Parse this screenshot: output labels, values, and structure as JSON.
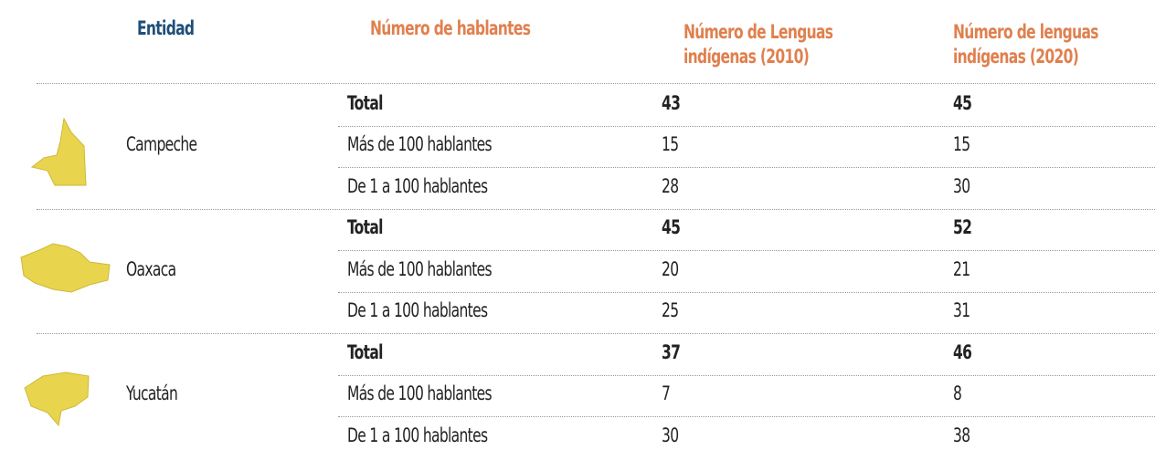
{
  "table": {
    "headers": [
      "Entidad",
      "Número de hablantes",
      "Número de Lenguas indígenas (2010)",
      "Número de lenguas indígenas (2020)"
    ],
    "groups": [
      {
        "name": "Campeche",
        "rows": [
          [
            "Total",
            43,
            45
          ],
          [
            "Más de 100 hablantes",
            15,
            15
          ],
          [
            "De 1 a 100 hablantes",
            28,
            30
          ]
        ]
      },
      {
        "name": "Oaxaca",
        "rows": [
          [
            "Total",
            45,
            52
          ],
          [
            "Más de 100 hablantes",
            20,
            21
          ],
          [
            "De 1 a 100 hablantes",
            25,
            31
          ]
        ]
      },
      {
        "name": "Yucatán",
        "rows": [
          [
            "Total",
            37,
            46
          ],
          [
            "Más de 100 hablantes",
            7,
            8
          ],
          [
            "De 1 a 100 hablantes",
            30,
            38
          ]
        ]
      }
    ]
  }
}
